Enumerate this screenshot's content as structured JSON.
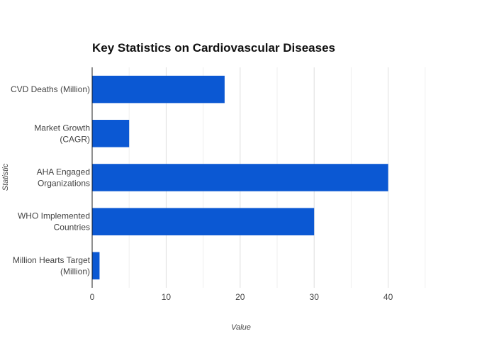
{
  "chart_data": {
    "type": "bar",
    "orientation": "horizontal",
    "title": "Key Statistics on Cardiovascular Diseases",
    "xlabel": "Value",
    "ylabel": "Statistic",
    "categories": [
      [
        "CVD Deaths (Million)"
      ],
      [
        "Market Growth",
        "(CAGR)"
      ],
      [
        "AHA Engaged",
        "Organizations"
      ],
      [
        "WHO Implemented",
        "Countries"
      ],
      [
        "Million Hearts Target",
        "(Million)"
      ]
    ],
    "values": [
      17.9,
      5,
      40,
      30,
      1
    ],
    "xlim": [
      0,
      50
    ],
    "xticks": [
      0,
      10,
      20,
      30,
      40
    ],
    "grid": true,
    "bar_color": "#0b58d3"
  }
}
